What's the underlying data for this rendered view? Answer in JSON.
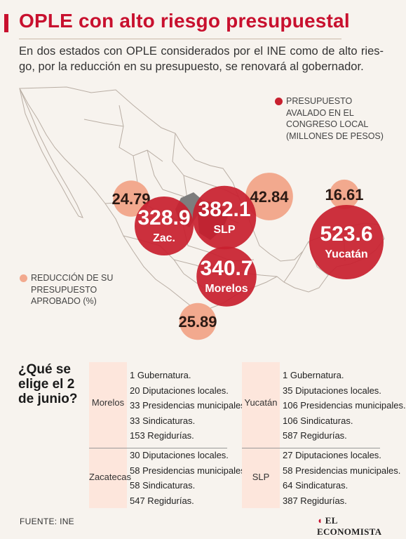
{
  "header": {
    "title": "OPLE con alto riesgo presupuestal",
    "subtitle": "En dos estados con OPLE considerados por el INE como de alto ries-go, por la reducción en su presupuesto, se renovará al gobernador."
  },
  "legend": {
    "budget": "PRESUPUESTO AVALADO EN EL CONGRESO LOCAL (MILLONES DE PESOS)",
    "reduction": "REDUCCIÓN DE SU PRESUPUESTO APROBADO (%)"
  },
  "colors": {
    "accent": "#c8102e",
    "budget_bubble": "#c8202f",
    "reduction_bubble": "#f2a98e"
  },
  "chart_data": {
    "type": "bubble-map",
    "series": [
      {
        "name": "PRESUPUESTO AVALADO EN EL CONGRESO LOCAL (MILLONES DE PESOS)",
        "unit": "millones de pesos"
      },
      {
        "name": "REDUCCIÓN DE SU PRESUPUESTO APROBADO (%)",
        "unit": "%"
      }
    ],
    "states": [
      {
        "label": "Zac.",
        "budget": 328.9,
        "budget_label": "328.9",
        "reduction": 24.79,
        "reduction_label": "24.79"
      },
      {
        "label": "SLP",
        "budget": 382.1,
        "budget_label": "382.1",
        "reduction": 42.84,
        "reduction_label": "42.84"
      },
      {
        "label": "Morelos",
        "budget": 340.7,
        "budget_label": "340.7",
        "reduction": 25.89,
        "reduction_label": "25.89"
      },
      {
        "label": "Yucatán",
        "budget": 523.6,
        "budget_label": "523.6",
        "reduction": 16.61,
        "reduction_label": "16.61"
      }
    ]
  },
  "election": {
    "question": "¿Qué se elige el 2 de junio?",
    "columns": [
      {
        "blocks": [
          {
            "state": "Morelos",
            "items": [
              "1 Gubernatura.",
              "20 Diputaciones locales.",
              "33 Presidencias municipales.",
              "33 Sindicaturas.",
              "153 Regidurías."
            ]
          },
          {
            "state": "Zacatecas",
            "items": [
              "30 Diputaciones locales.",
              "58 Presidencias municipales.",
              "58 Sindicaturas.",
              "547 Regidurías."
            ]
          }
        ]
      },
      {
        "blocks": [
          {
            "state": "Yucatán",
            "items": [
              "1 Gubernatura.",
              "35 Diputaciones locales.",
              "106 Presidencias municipales.",
              "106 Sindicaturas.",
              "587 Regidurías."
            ]
          },
          {
            "state": "SLP",
            "items": [
              "27 Diputaciones locales.",
              "58 Presidencias municipales.",
              "64 Sindicaturas.",
              "387 Regidurías."
            ]
          }
        ]
      }
    ]
  },
  "footer": {
    "source": "FUENTE: INE",
    "brand_mark": "◖",
    "brand": "EL ECONOMISTA"
  }
}
